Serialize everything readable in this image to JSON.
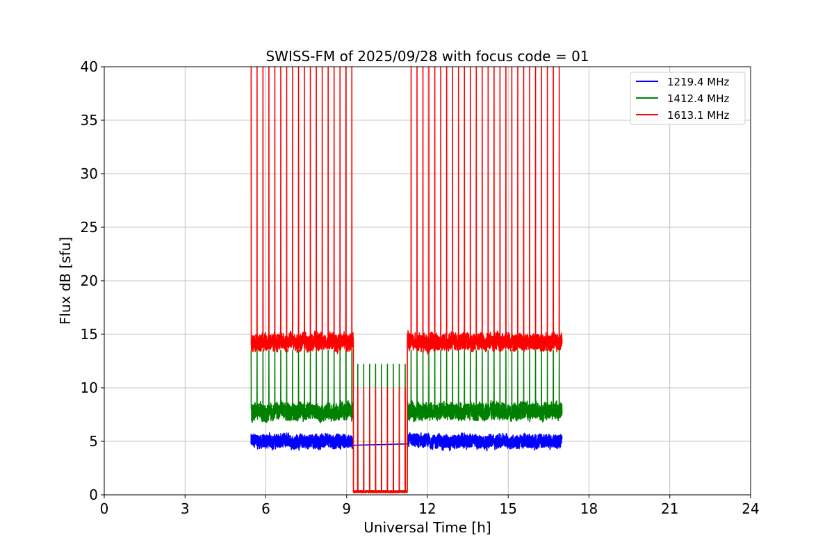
{
  "chart_data": {
    "type": "line",
    "title": "SWISS-FM of 2025/09/28 with focus code = 01",
    "xlabel": "Universal Time [h]",
    "ylabel": "Flux dB [sfu]",
    "xlim": [
      0,
      24
    ],
    "ylim": [
      0,
      40
    ],
    "xticks": [
      0,
      3,
      6,
      9,
      12,
      15,
      18,
      21,
      24
    ],
    "yticks": [
      0,
      5,
      10,
      15,
      20,
      25,
      30,
      35,
      40
    ],
    "grid": true,
    "legend_position": "top-right",
    "time_range": [
      5.45,
      17.0
    ],
    "gap_range": [
      9.25,
      11.25
    ],
    "spike_period_h": 0.22,
    "series": [
      {
        "name": "1219.4 MHz",
        "color": "#0000ff",
        "baseline_db": 5.0,
        "noise_db": 0.8,
        "gap_level_db": null,
        "spike_peak_db": null
      },
      {
        "name": "1412.4 MHz",
        "color": "#008000",
        "baseline_db": 7.8,
        "noise_db": 1.0,
        "gap_level_db": 0.3,
        "spike_peak_db": 13.5,
        "gap_spike_peak_db": 12.2
      },
      {
        "name": "1613.1 MHz",
        "color": "#ff0000",
        "baseline_db": 14.3,
        "noise_db": 1.0,
        "gap_level_db": 0.3,
        "spike_peak_db": 40,
        "gap_spike_peak_db": 10.0
      }
    ]
  }
}
